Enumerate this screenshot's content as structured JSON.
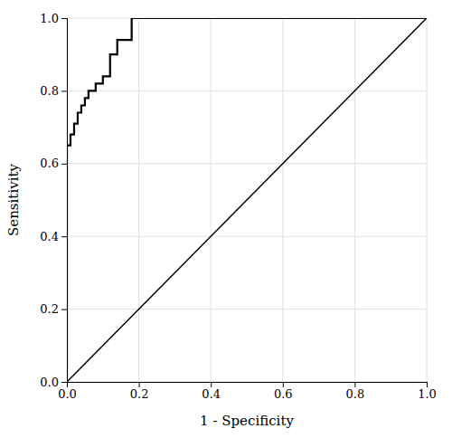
{
  "chart_data": {
    "type": "line",
    "xlabel": "1 - Specificity",
    "ylabel": "Sensitivity",
    "xlim": [
      0.0,
      1.0
    ],
    "ylim": [
      0.0,
      1.0
    ],
    "xticks": [
      {
        "value": 0.0,
        "label": "0.0"
      },
      0.2,
      0.4,
      0.6,
      0.8,
      {
        "value": 1.0,
        "label": "1.0"
      }
    ],
    "yticks": [
      {
        "value": 0.0,
        "label": "0.0"
      },
      0.2,
      0.4,
      0.6,
      0.8,
      {
        "value": 1.0,
        "label": "1.0"
      }
    ],
    "grid": true,
    "series": [
      {
        "color": "#000000",
        "x": [
          0,
          1
        ],
        "values": [
          0,
          1
        ]
      },
      {
        "color": "#000000",
        "x": [
          0.0,
          0.0,
          0.01,
          0.01,
          0.02,
          0.02,
          0.03,
          0.03,
          0.04,
          0.04,
          0.05,
          0.05,
          0.06,
          0.06,
          0.08,
          0.08,
          0.1,
          0.1,
          0.12,
          0.12,
          0.14,
          0.14,
          0.18,
          0.18,
          0.22,
          0.22,
          1.0
        ],
        "values": [
          0.0,
          0.65,
          0.65,
          0.68,
          0.68,
          0.71,
          0.71,
          0.74,
          0.74,
          0.76,
          0.76,
          0.78,
          0.78,
          0.8,
          0.8,
          0.82,
          0.82,
          0.84,
          0.84,
          0.9,
          0.9,
          0.94,
          0.94,
          1.0,
          1.0,
          1.0,
          1.0
        ]
      }
    ]
  }
}
